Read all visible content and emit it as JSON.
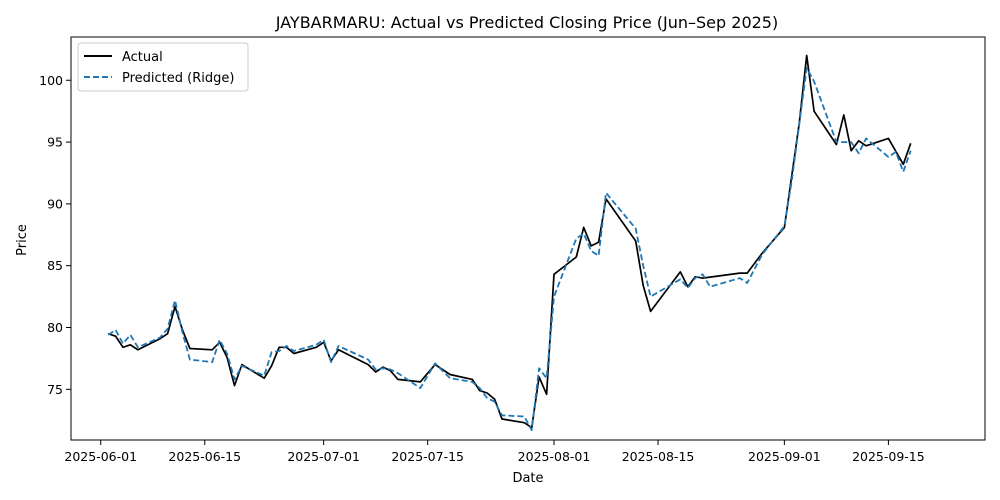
{
  "chart_data": {
    "type": "line",
    "title": "JAYBARMARU: Actual vs Predicted Closing Price (Jun–Sep 2025)",
    "xlabel": "Date",
    "ylabel": "Price",
    "x_range": [
      "2025-05-28",
      "2025-09-28"
    ],
    "ylim": [
      70.9,
      103.5
    ],
    "x_ticks": [
      "2025-06-01",
      "2025-06-15",
      "2025-07-01",
      "2025-07-15",
      "2025-08-01",
      "2025-08-15",
      "2025-09-01",
      "2025-09-15"
    ],
    "y_ticks": [
      75,
      80,
      85,
      90,
      95,
      100
    ],
    "grid": false,
    "legend_position": "top-left",
    "series": [
      {
        "name": "Actual",
        "color": "#000000",
        "style": "solid",
        "points": [
          [
            "2025-06-02",
            79.5
          ],
          [
            "2025-06-03",
            79.3
          ],
          [
            "2025-06-04",
            78.4
          ],
          [
            "2025-06-05",
            78.6
          ],
          [
            "2025-06-06",
            78.2
          ],
          [
            "2025-06-09",
            79.1
          ],
          [
            "2025-06-10",
            79.5
          ],
          [
            "2025-06-11",
            81.7
          ],
          [
            "2025-06-12",
            79.8
          ],
          [
            "2025-06-13",
            78.3
          ],
          [
            "2025-06-16",
            78.2
          ],
          [
            "2025-06-17",
            78.8
          ],
          [
            "2025-06-18",
            77.6
          ],
          [
            "2025-06-19",
            75.3
          ],
          [
            "2025-06-20",
            77.0
          ],
          [
            "2025-06-23",
            75.9
          ],
          [
            "2025-06-24",
            76.9
          ],
          [
            "2025-06-25",
            78.4
          ],
          [
            "2025-06-26",
            78.4
          ],
          [
            "2025-06-27",
            77.9
          ],
          [
            "2025-06-30",
            78.4
          ],
          [
            "2025-07-01",
            78.8
          ],
          [
            "2025-07-02",
            77.3
          ],
          [
            "2025-07-03",
            78.2
          ],
          [
            "2025-07-07",
            77.0
          ],
          [
            "2025-07-08",
            76.4
          ],
          [
            "2025-07-09",
            76.8
          ],
          [
            "2025-07-10",
            76.5
          ],
          [
            "2025-07-11",
            75.8
          ],
          [
            "2025-07-14",
            75.6
          ],
          [
            "2025-07-15",
            76.3
          ],
          [
            "2025-07-16",
            77.0
          ],
          [
            "2025-07-18",
            76.2
          ],
          [
            "2025-07-21",
            75.8
          ],
          [
            "2025-07-22",
            74.9
          ],
          [
            "2025-07-23",
            74.7
          ],
          [
            "2025-07-24",
            74.2
          ],
          [
            "2025-07-25",
            72.6
          ],
          [
            "2025-07-28",
            72.3
          ],
          [
            "2025-07-29",
            71.9
          ],
          [
            "2025-07-30",
            76.0
          ],
          [
            "2025-07-31",
            74.6
          ],
          [
            "2025-08-01",
            84.3
          ],
          [
            "2025-08-04",
            85.7
          ],
          [
            "2025-08-05",
            88.1
          ],
          [
            "2025-08-06",
            86.6
          ],
          [
            "2025-08-07",
            86.9
          ],
          [
            "2025-08-08",
            90.4
          ],
          [
            "2025-08-12",
            87.0
          ],
          [
            "2025-08-13",
            83.4
          ],
          [
            "2025-08-14",
            81.3
          ],
          [
            "2025-08-18",
            84.5
          ],
          [
            "2025-08-19",
            83.3
          ],
          [
            "2025-08-20",
            84.1
          ],
          [
            "2025-08-21",
            84.0
          ],
          [
            "2025-08-26",
            84.4
          ],
          [
            "2025-08-27",
            84.4
          ],
          [
            "2025-08-29",
            86.0
          ],
          [
            "2025-09-01",
            88.1
          ],
          [
            "2025-09-03",
            96.5
          ],
          [
            "2025-09-04",
            102.0
          ],
          [
            "2025-09-05",
            97.5
          ],
          [
            "2025-09-08",
            94.8
          ],
          [
            "2025-09-09",
            97.2
          ],
          [
            "2025-09-10",
            94.3
          ],
          [
            "2025-09-11",
            95.1
          ],
          [
            "2025-09-12",
            94.7
          ],
          [
            "2025-09-15",
            95.3
          ],
          [
            "2025-09-17",
            93.2
          ],
          [
            "2025-09-18",
            94.9
          ]
        ]
      },
      {
        "name": "Predicted (Ridge)",
        "color": "#1f77b4",
        "style": "dashed",
        "points": [
          [
            "2025-06-02",
            79.4
          ],
          [
            "2025-06-03",
            79.8
          ],
          [
            "2025-06-04",
            78.7
          ],
          [
            "2025-06-05",
            79.4
          ],
          [
            "2025-06-06",
            78.4
          ],
          [
            "2025-06-09",
            79.2
          ],
          [
            "2025-06-10",
            79.9
          ],
          [
            "2025-06-11",
            82.2
          ],
          [
            "2025-06-12",
            79.6
          ],
          [
            "2025-06-13",
            77.4
          ],
          [
            "2025-06-16",
            77.2
          ],
          [
            "2025-06-17",
            79.0
          ],
          [
            "2025-06-18",
            77.9
          ],
          [
            "2025-06-19",
            75.8
          ],
          [
            "2025-06-20",
            76.9
          ],
          [
            "2025-06-23",
            76.1
          ],
          [
            "2025-06-24",
            78.0
          ],
          [
            "2025-06-25",
            78.1
          ],
          [
            "2025-06-26",
            78.5
          ],
          [
            "2025-06-27",
            78.1
          ],
          [
            "2025-06-30",
            78.6
          ],
          [
            "2025-07-01",
            79.0
          ],
          [
            "2025-07-02",
            77.2
          ],
          [
            "2025-07-03",
            78.5
          ],
          [
            "2025-07-07",
            77.4
          ],
          [
            "2025-07-08",
            76.6
          ],
          [
            "2025-07-09",
            76.7
          ],
          [
            "2025-07-10",
            76.6
          ],
          [
            "2025-07-11",
            76.3
          ],
          [
            "2025-07-14",
            75.1
          ],
          [
            "2025-07-15",
            76.1
          ],
          [
            "2025-07-16",
            77.1
          ],
          [
            "2025-07-18",
            75.9
          ],
          [
            "2025-07-21",
            75.6
          ],
          [
            "2025-07-22",
            75.1
          ],
          [
            "2025-07-23",
            74.3
          ],
          [
            "2025-07-24",
            74.0
          ],
          [
            "2025-07-25",
            72.9
          ],
          [
            "2025-07-28",
            72.8
          ],
          [
            "2025-07-29",
            71.7
          ],
          [
            "2025-07-30",
            76.7
          ],
          [
            "2025-07-31",
            75.9
          ],
          [
            "2025-08-01",
            82.5
          ],
          [
            "2025-08-04",
            87.2
          ],
          [
            "2025-08-05",
            87.6
          ],
          [
            "2025-08-06",
            86.2
          ],
          [
            "2025-08-07",
            85.8
          ],
          [
            "2025-08-08",
            90.9
          ],
          [
            "2025-08-12",
            88.0
          ],
          [
            "2025-08-13",
            85.0
          ],
          [
            "2025-08-14",
            82.5
          ],
          [
            "2025-08-18",
            83.9
          ],
          [
            "2025-08-19",
            83.2
          ],
          [
            "2025-08-20",
            84.0
          ],
          [
            "2025-08-21",
            84.3
          ],
          [
            "2025-08-22",
            83.3
          ],
          [
            "2025-08-26",
            84.0
          ],
          [
            "2025-08-27",
            83.6
          ],
          [
            "2025-08-29",
            85.9
          ],
          [
            "2025-09-01",
            88.2
          ],
          [
            "2025-09-02",
            91.9
          ],
          [
            "2025-09-04",
            101.0
          ],
          [
            "2025-09-05",
            99.9
          ],
          [
            "2025-09-08",
            95.0
          ],
          [
            "2025-09-10",
            95.0
          ],
          [
            "2025-09-11",
            94.1
          ],
          [
            "2025-09-12",
            95.3
          ],
          [
            "2025-09-15",
            93.8
          ],
          [
            "2025-09-16",
            94.2
          ],
          [
            "2025-09-17",
            92.6
          ],
          [
            "2025-09-18",
            94.3
          ]
        ]
      }
    ]
  }
}
